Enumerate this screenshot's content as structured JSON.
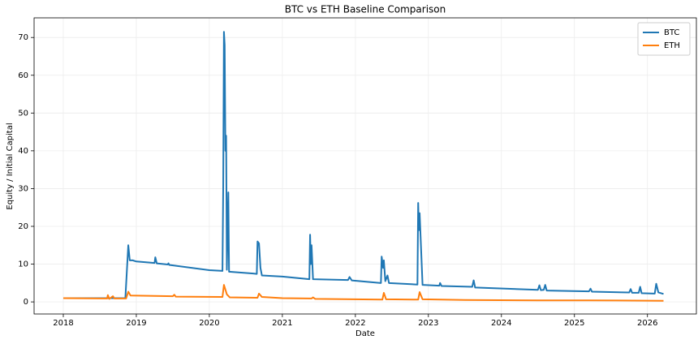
{
  "chart_data": {
    "type": "line",
    "title": "BTC vs ETH Baseline Comparison",
    "xlabel": "Date",
    "ylabel": "Equity / Initial Capital",
    "xlim": [
      2017.6,
      2026.67
    ],
    "ylim": [
      -3.2,
      75.2
    ],
    "xticks": [
      2018,
      2019,
      2020,
      2021,
      2022,
      2023,
      2024,
      2025,
      2026
    ],
    "yticks": [
      0,
      10,
      20,
      30,
      40,
      50,
      60,
      70
    ],
    "grid": true,
    "legend": "upper right",
    "series": [
      {
        "name": "BTC",
        "color": "#1f77b4",
        "x": [
          2018.0,
          2018.85,
          2018.87,
          2018.89,
          2018.91,
          2018.95,
          2019.0,
          2019.25,
          2019.26,
          2019.28,
          2019.43,
          2019.44,
          2019.45,
          2020.0,
          2020.18,
          2020.19,
          2020.2,
          2020.21,
          2020.22,
          2020.23,
          2020.24,
          2020.26,
          2020.27,
          2020.6,
          2020.65,
          2020.66,
          2020.68,
          2020.7,
          2020.72,
          2021.0,
          2021.37,
          2021.38,
          2021.39,
          2021.4,
          2021.42,
          2021.9,
          2021.92,
          2021.95,
          2022.35,
          2022.36,
          2022.38,
          2022.39,
          2022.41,
          2022.44,
          2022.46,
          2022.85,
          2022.86,
          2022.87,
          2022.88,
          2022.9,
          2022.92,
          2023.15,
          2023.16,
          2023.18,
          2023.6,
          2023.62,
          2023.64,
          2024.5,
          2024.52,
          2024.54,
          2024.58,
          2024.6,
          2024.62,
          2025.2,
          2025.22,
          2025.24,
          2025.75,
          2025.77,
          2025.79,
          2025.88,
          2025.9,
          2025.92,
          2026.1,
          2026.12,
          2026.15,
          2026.22
        ],
        "values": [
          1,
          1,
          8,
          15,
          11,
          11,
          10.7,
          10.3,
          11.8,
          10.2,
          9.9,
          10.2,
          9.8,
          8.4,
          8.2,
          30,
          71.5,
          68,
          40,
          44,
          8.5,
          29,
          8,
          7.5,
          7.4,
          16,
          15.5,
          9,
          7,
          6.7,
          6,
          17.8,
          10,
          15,
          6,
          5.8,
          6.6,
          5.7,
          5.0,
          12,
          9,
          11,
          5.5,
          7,
          5,
          4.6,
          26.2,
          19,
          23.5,
          14,
          4.5,
          4.3,
          5,
          4.2,
          4,
          5.7,
          3.8,
          3.2,
          4.4,
          3.1,
          3.2,
          4.5,
          3,
          2.8,
          3.5,
          2.7,
          2.5,
          3.4,
          2.4,
          2.4,
          4,
          2.3,
          2.2,
          4.8,
          2.5,
          2.1
        ]
      },
      {
        "name": "ETH",
        "color": "#ff7f0e",
        "x": [
          2018.0,
          2018.6,
          2018.61,
          2018.63,
          2018.68,
          2018.7,
          2018.86,
          2018.89,
          2018.92,
          2019.5,
          2019.52,
          2019.54,
          2020.18,
          2020.2,
          2020.24,
          2020.28,
          2020.66,
          2020.68,
          2020.72,
          2021.0,
          2021.4,
          2021.42,
          2021.45,
          2022.37,
          2022.39,
          2022.42,
          2022.86,
          2022.88,
          2022.92,
          2023.5,
          2024.5,
          2025.2,
          2026.22
        ],
        "values": [
          1,
          0.9,
          1.8,
          0.8,
          1.5,
          0.9,
          0.9,
          2.7,
          1.7,
          1.5,
          1.9,
          1.4,
          1.3,
          4.5,
          2,
          1.2,
          1.1,
          2.2,
          1.3,
          1.0,
          0.9,
          1.2,
          0.8,
          0.6,
          2.4,
          0.7,
          0.6,
          2.6,
          0.7,
          0.5,
          0.4,
          0.4,
          0.3
        ]
      }
    ]
  }
}
